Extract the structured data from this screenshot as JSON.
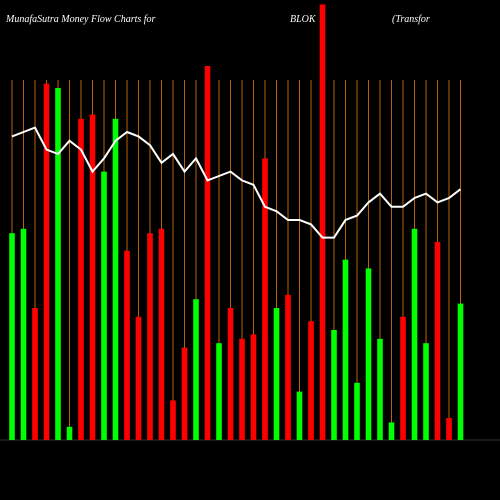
{
  "chart_data": {
    "type": "bar",
    "title": "MunafaSutra  Money Flow  Charts for",
    "ticker": "BLOK",
    "subtitle": "(Transfor",
    "ylim": [
      0,
      100
    ],
    "grid": true,
    "grid_color": "#b8630a",
    "series": [
      {
        "name": "Money flow",
        "type": "bar",
        "colors": [
          "#00ff00",
          "#00ff00",
          "#ff0000",
          "#ff0000",
          "#00ff00",
          "#00ff00",
          "#ff0000",
          "#ff0000",
          "#00ff00",
          "#00ff00",
          "#ff0000",
          "#ff0000",
          "#ff0000",
          "#ff0000",
          "#ff0000",
          "#ff0000",
          "#00ff00",
          "#ff0000",
          "#00ff00",
          "#ff0000",
          "#ff0000",
          "#ff0000",
          "#ff0000",
          "#00ff00",
          "#ff0000",
          "#00ff00",
          "#ff0000",
          "#ff0000",
          "#00ff00",
          "#00ff00",
          "#00ff00",
          "#00ff00",
          "#00ff00",
          "#00ff00",
          "#ff0000",
          "#00ff00",
          "#00ff00",
          "#ff0000",
          "#ff0000",
          "#00ff00"
        ],
        "values": [
          47,
          48,
          30,
          81,
          80,
          3,
          73,
          74,
          61,
          73,
          43,
          28,
          47,
          48,
          9,
          21,
          32,
          85,
          22,
          30,
          23,
          24,
          64,
          30,
          33,
          11,
          27,
          99,
          25,
          41,
          13,
          39,
          23,
          4,
          28,
          48,
          22,
          45,
          5,
          31
        ]
      },
      {
        "name": "Trend",
        "type": "line",
        "color": "#ffffff",
        "values": [
          69,
          70,
          71,
          66,
          65,
          68,
          66,
          61,
          64,
          68,
          70,
          69,
          67,
          63,
          65,
          61,
          64,
          59,
          60,
          61,
          59,
          58,
          53,
          52,
          50,
          50,
          49,
          46,
          46,
          50,
          51,
          54,
          56,
          53,
          53,
          55,
          56,
          54,
          55,
          57
        ]
      }
    ]
  }
}
